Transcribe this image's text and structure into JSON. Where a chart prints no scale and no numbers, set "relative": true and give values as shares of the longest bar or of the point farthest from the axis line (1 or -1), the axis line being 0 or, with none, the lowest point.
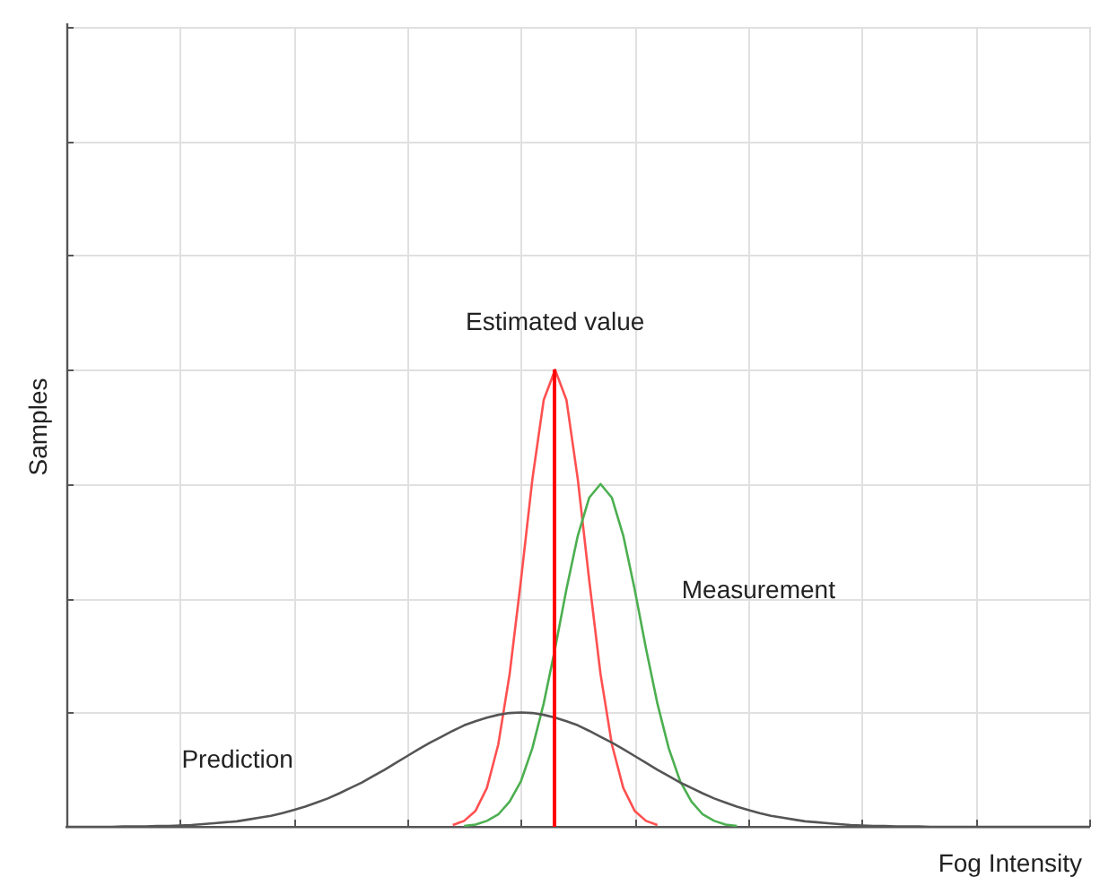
{
  "chart_data": {
    "type": "line",
    "relative": true,
    "xlabel": "Fog Intensity",
    "ylabel": "Samples",
    "grid": true,
    "marker": "none",
    "line_style": "solid",
    "legend": false,
    "tick_labels": false,
    "categories": [
      null,
      null,
      null,
      null,
      null,
      null,
      null,
      null,
      null,
      null,
      null,
      null,
      null,
      null,
      null,
      null,
      null,
      null,
      null,
      null,
      null,
      null,
      null,
      null,
      null,
      null,
      null,
      null,
      null,
      null,
      null,
      null,
      null,
      null,
      null,
      null,
      null,
      null,
      null,
      null,
      null,
      null,
      null,
      null,
      null,
      null,
      null,
      null,
      null,
      null,
      null,
      null,
      null,
      null,
      null,
      null,
      null,
      null,
      null,
      null,
      null,
      null,
      null,
      null,
      null,
      null,
      null,
      null,
      null,
      null,
      null,
      null,
      null,
      null,
      null,
      null,
      null,
      null,
      null,
      null,
      null,
      null,
      null,
      null,
      null,
      null,
      null,
      null,
      null,
      null,
      null
    ],
    "series": [
      {
        "name": "Prediction",
        "color": "#555555",
        "values": [
          0,
          0,
          0,
          0,
          0,
          0.001,
          0.001,
          0.001,
          0.002,
          0.002,
          0.003,
          0.004,
          0.006,
          0.008,
          0.01,
          0.012,
          0.016,
          0.02,
          0.024,
          0.03,
          0.037,
          0.044,
          0.053,
          0.062,
          0.073,
          0.085,
          0.097,
          0.111,
          0.125,
          0.14,
          0.155,
          0.17,
          0.184,
          0.197,
          0.21,
          0.222,
          0.231,
          0.239,
          0.245,
          0.249,
          0.25,
          0.249,
          0.245,
          0.239,
          0.231,
          0.222,
          0.21,
          0.197,
          0.184,
          0.17,
          0.155,
          0.14,
          0.125,
          0.111,
          0.097,
          0.085,
          0.073,
          0.062,
          0.053,
          0.044,
          0.037,
          0.03,
          0.024,
          0.02,
          0.016,
          0.012,
          0.01,
          0.008,
          0.006,
          0.004,
          0.003,
          0.002,
          0.002,
          0.001,
          0.001,
          0.001,
          0,
          0,
          0,
          0,
          0,
          0,
          0,
          0,
          0,
          0,
          0,
          0,
          0,
          0,
          0
        ]
      },
      {
        "name": "Measurement",
        "color": "#4caf50",
        "values": [
          null,
          null,
          null,
          null,
          null,
          null,
          null,
          null,
          null,
          null,
          null,
          null,
          null,
          null,
          null,
          null,
          null,
          null,
          null,
          null,
          null,
          null,
          null,
          null,
          null,
          null,
          null,
          null,
          null,
          null,
          null,
          null,
          null,
          null,
          null,
          0.002,
          0.005,
          0.013,
          0.027,
          0.055,
          0.1,
          0.172,
          0.27,
          0.39,
          0.52,
          0.637,
          0.72,
          0.75,
          0.72,
          0.637,
          0.52,
          0.39,
          0.27,
          0.172,
          0.1,
          0.055,
          0.027,
          0.013,
          0.005,
          0.002,
          null,
          null,
          null,
          null,
          null,
          null,
          null,
          null,
          null,
          null,
          null,
          null,
          null,
          null,
          null,
          null,
          null,
          null,
          null,
          null,
          null,
          null,
          null,
          null,
          null,
          null,
          null,
          null,
          null,
          null,
          null
        ]
      },
      {
        "name": "Estimated value",
        "color": "#ff5050",
        "values": [
          null,
          null,
          null,
          null,
          null,
          null,
          null,
          null,
          null,
          null,
          null,
          null,
          null,
          null,
          null,
          null,
          null,
          null,
          null,
          null,
          null,
          null,
          null,
          null,
          null,
          null,
          null,
          null,
          null,
          null,
          null,
          null,
          null,
          null,
          0.004,
          0.013,
          0.035,
          0.085,
          0.18,
          0.334,
          0.54,
          0.76,
          0.934,
          1,
          0.934,
          0.76,
          0.54,
          0.334,
          0.18,
          0.085,
          0.035,
          0.013,
          0.004,
          null,
          null,
          null,
          null,
          null,
          null,
          null,
          null,
          null,
          null,
          null,
          null,
          null,
          null,
          null,
          null,
          null,
          null,
          null,
          null,
          null,
          null,
          null,
          null,
          null,
          null,
          null,
          null,
          null,
          null,
          null,
          null,
          null,
          null,
          null,
          null,
          null,
          null
        ]
      }
    ]
  }
}
